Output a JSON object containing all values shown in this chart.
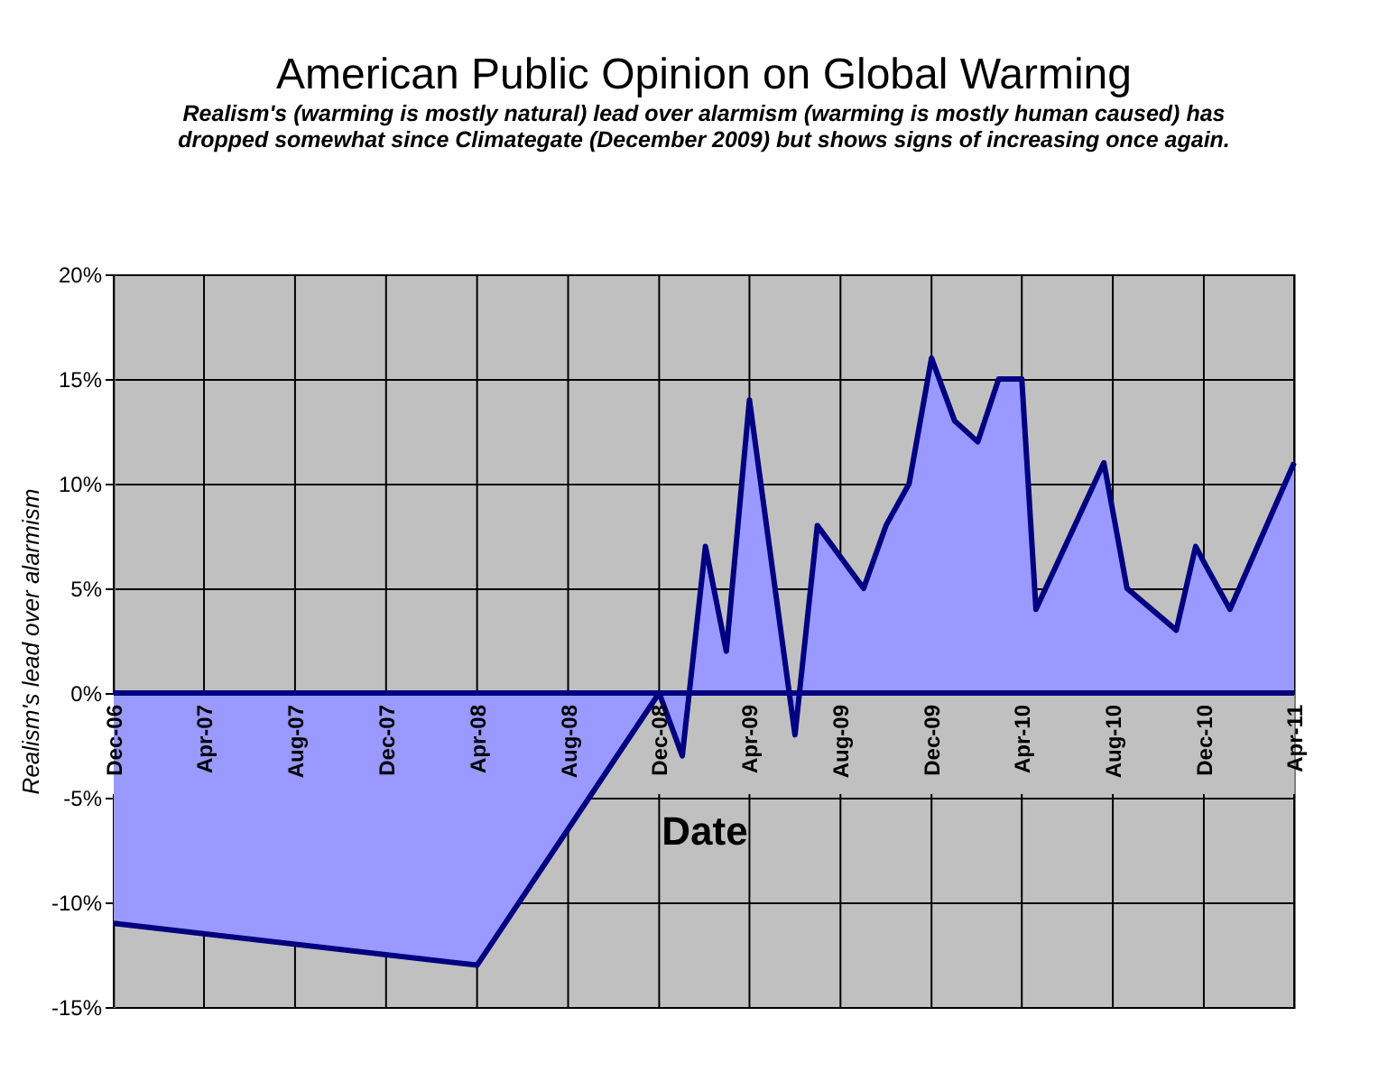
{
  "chart_data": {
    "type": "area",
    "title": "American Public Opinion on Global Warming",
    "subtitle": [
      "Realism's (warming is mostly natural) lead over alarmism (warming is mostly human caused) has",
      "dropped somewhat since Climategate (December 2009) but shows signs of increasing once again."
    ],
    "xlabel": "Date",
    "ylabel": "Realism's lead over alarmism",
    "x": [
      "2006-12-01",
      "2008-04-01",
      "2008-12-01",
      "2009-01-01",
      "2009-02-01",
      "2009-03-01",
      "2009-04-01",
      "2009-06-01",
      "2009-07-01",
      "2009-09-01",
      "2009-10-01",
      "2009-11-01",
      "2009-12-01",
      "2010-01-01",
      "2010-02-01",
      "2010-03-01",
      "2010-04-01",
      "2010-04-20",
      "2010-07-20",
      "2010-08-20",
      "2010-10-25",
      "2010-11-20",
      "2010-12-05",
      "2011-01-05",
      "2011-04-01"
    ],
    "series": [
      {
        "color": "#9999ff",
        "values": [
          -11,
          -13,
          0,
          -3,
          7,
          2,
          14,
          -2,
          8,
          5,
          8,
          10,
          16,
          13,
          12,
          15,
          15,
          4,
          11,
          5,
          3,
          7,
          6,
          4,
          11
        ]
      }
    ],
    "xlim": [
      "2006-12-01",
      "2011-04-01"
    ],
    "xticks": [
      {
        "value": "2006-12-01",
        "label": "Dec-06"
      },
      {
        "value": "2007-04-01",
        "label": "Apr-07"
      },
      {
        "value": "2007-08-01",
        "label": "Aug-07"
      },
      {
        "value": "2007-12-01",
        "label": "Dec-07"
      },
      {
        "value": "2008-04-01",
        "label": "Apr-08"
      },
      {
        "value": "2008-08-01",
        "label": "Aug-08"
      },
      {
        "value": "2008-12-01",
        "label": "Dec-08"
      },
      {
        "value": "2009-04-01",
        "label": "Apr-09"
      },
      {
        "value": "2009-08-01",
        "label": "Aug-09"
      },
      {
        "value": "2009-12-01",
        "label": "Dec-09"
      },
      {
        "value": "2010-04-01",
        "label": "Apr-10"
      },
      {
        "value": "2010-08-01",
        "label": "Aug-10"
      },
      {
        "value": "2010-12-01",
        "label": "Dec-10"
      },
      {
        "value": "2011-04-01",
        "label": "Apr-11"
      }
    ],
    "ylim": [
      -15,
      20
    ],
    "yticks": [
      {
        "value": -15,
        "label": "-15%"
      },
      {
        "value": -10,
        "label": "-10%"
      },
      {
        "value": -5,
        "label": "-5%"
      },
      {
        "value": 0,
        "label": "0%"
      },
      {
        "value": 5,
        "label": "5%"
      },
      {
        "value": 10,
        "label": "10%"
      },
      {
        "value": 15,
        "label": "15%"
      },
      {
        "value": 20,
        "label": "20%"
      }
    ],
    "grid": true
  }
}
